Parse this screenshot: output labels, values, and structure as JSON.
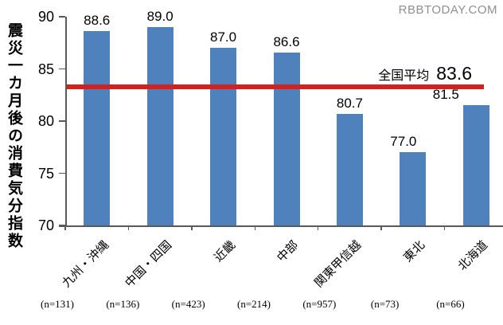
{
  "watermark": "RBBTODAY.COM",
  "chart_data": {
    "type": "bar",
    "title": "",
    "ylabel": "震災一カ月後の消費気分指数",
    "xlabel": "",
    "categories": [
      "九州・沖縄",
      "中国・四国",
      "近畿",
      "中部",
      "関東甲信越",
      "東北",
      "北海道"
    ],
    "values": [
      88.6,
      89.0,
      87.0,
      86.6,
      80.7,
      77.0,
      81.5
    ],
    "value_labels": [
      "88.6",
      "89.0",
      "87.0",
      "86.6",
      "80.7",
      "77.0",
      "81.5"
    ],
    "sample_sizes": [
      "(n=131)",
      "(n=136)",
      "(n=423)",
      "(n=214)",
      "(n=957)",
      "(n=73)",
      "(n=66)"
    ],
    "ylim": [
      70,
      90
    ],
    "yticks": [
      70,
      75,
      80,
      85,
      90
    ],
    "grid": false,
    "legend": false,
    "bar_color": "#4F81BD",
    "axis_color": "#595959",
    "reference_line": {
      "label": "全国平均",
      "value": 83.6,
      "value_label": "83.6",
      "color": "#CE2321"
    }
  }
}
